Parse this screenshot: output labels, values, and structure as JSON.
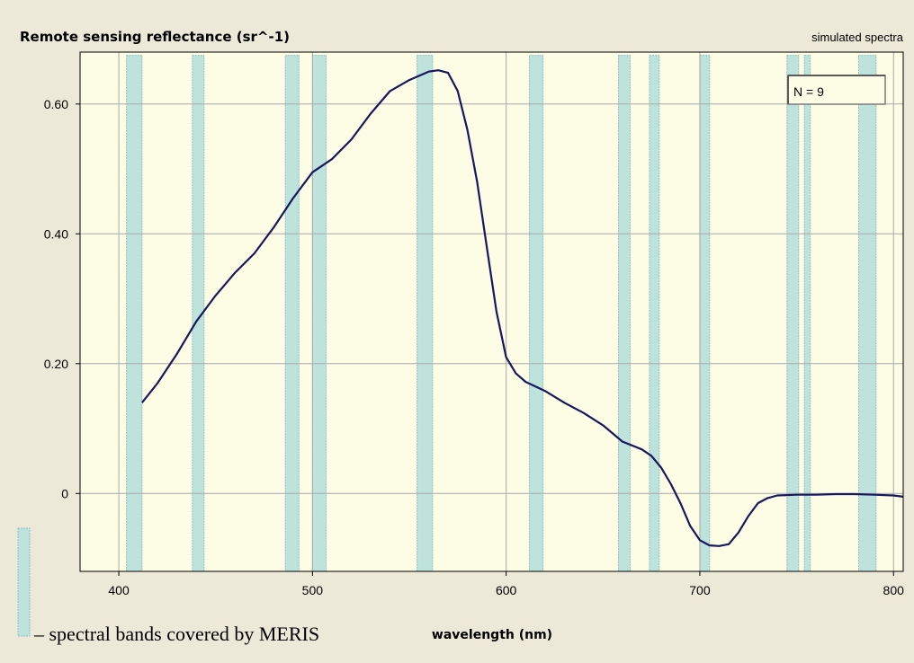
{
  "chart_data": {
    "type": "line",
    "title": "Remote sensing reflectance (sr^-1)",
    "subtitle": "simulated spectra",
    "xlabel": "wavelength (nm)",
    "ylabel": "",
    "xlim": [
      380,
      805
    ],
    "ylim": [
      -0.12,
      0.68
    ],
    "x_ticks": [
      400,
      500,
      600,
      700,
      800
    ],
    "x_tick_labels": [
      "400",
      "500",
      "600",
      "700",
      "800"
    ],
    "y_ticks": [
      0,
      0.2,
      0.4,
      0.6
    ],
    "y_tick_labels": [
      "0",
      "0.20",
      "0.40",
      "0.60"
    ],
    "grid": true,
    "annotation": "N = 9",
    "legend_text": "– spectral bands covered by MERIS",
    "bands": [
      [
        404,
        412
      ],
      [
        438,
        444
      ],
      [
        486,
        493
      ],
      [
        500,
        507
      ],
      [
        554,
        562
      ],
      [
        612,
        619
      ],
      [
        658,
        664
      ],
      [
        674,
        679
      ],
      [
        700,
        705
      ],
      [
        745,
        751
      ],
      [
        754,
        757
      ],
      [
        782,
        791
      ]
    ],
    "series": [
      {
        "x": [
          412,
          420,
          430,
          440,
          450,
          460,
          470,
          480,
          490,
          500,
          510,
          520,
          530,
          540,
          550,
          560,
          565,
          570,
          575,
          580,
          585,
          590,
          595,
          600,
          605,
          610,
          620,
          630,
          640,
          650,
          660,
          670,
          675,
          680,
          685,
          690,
          695,
          700,
          705,
          710,
          715,
          720,
          725,
          730,
          735,
          740,
          750,
          760,
          770,
          780,
          790,
          800,
          805
        ],
        "y": [
          0.14,
          0.17,
          0.215,
          0.265,
          0.305,
          0.34,
          0.37,
          0.41,
          0.455,
          0.495,
          0.515,
          0.545,
          0.585,
          0.62,
          0.637,
          0.65,
          0.652,
          0.648,
          0.62,
          0.56,
          0.48,
          0.38,
          0.28,
          0.21,
          0.185,
          0.172,
          0.158,
          0.14,
          0.124,
          0.105,
          0.08,
          0.068,
          0.058,
          0.04,
          0.015,
          -0.015,
          -0.05,
          -0.072,
          -0.08,
          -0.081,
          -0.078,
          -0.06,
          -0.035,
          -0.015,
          -0.007,
          -0.003,
          -0.002,
          -0.002,
          -0.001,
          -0.001,
          -0.002,
          -0.003,
          -0.005
        ]
      }
    ]
  },
  "colors": {
    "plot_bg": "#fdfce4",
    "band_fill": "#bde3dc",
    "band_stroke": "#8fbfc4",
    "line": "#17175e",
    "grid": "#a9a9a9",
    "window_bg": "#ece9d8"
  }
}
